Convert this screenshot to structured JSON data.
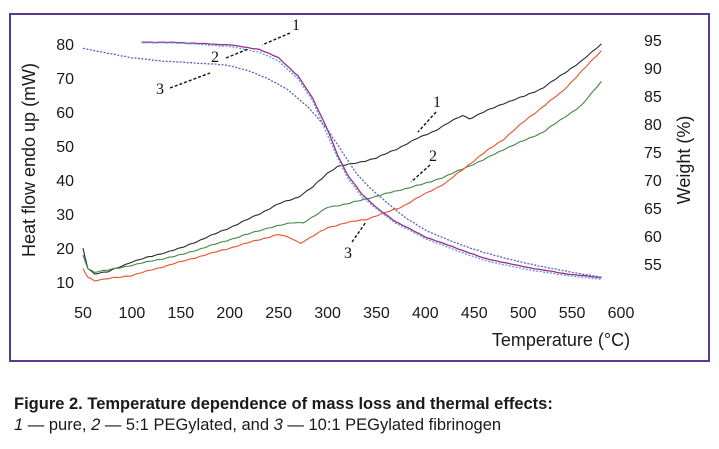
{
  "figure": {
    "caption_title": "Figure 2. Temperature dependence of mass loss and thermal effects:",
    "caption_line2_parts": [
      {
        "text": "1",
        "italic": true
      },
      {
        "text": " — pure, ",
        "italic": false
      },
      {
        "text": "2",
        "italic": true
      },
      {
        "text": " — 5:1 PEGylated, and ",
        "italic": false
      },
      {
        "text": "3",
        "italic": true
      },
      {
        "text": " — 10:1 PEGylated fibrinogen",
        "italic": false
      }
    ]
  },
  "chart_data": {
    "type": "line",
    "xlabel": "Temperature (°C)",
    "ylabel_left": "Heat flow endo up (mW)",
    "ylabel_right": "Weight (%)",
    "xlim": [
      50,
      600
    ],
    "ylim_left": [
      8,
      82
    ],
    "ylim_right": [
      50.5,
      95.5
    ],
    "x_ticks": [
      50,
      100,
      150,
      200,
      250,
      300,
      350,
      400,
      450,
      500,
      550,
      600
    ],
    "y_left_ticks": [
      10,
      20,
      30,
      40,
      50,
      60,
      70,
      80
    ],
    "y_right_ticks": [
      55,
      60,
      65,
      70,
      75,
      80,
      85,
      90,
      95
    ],
    "grid": false,
    "legend": "none",
    "series": [
      {
        "group": "heat_flow",
        "label": "1",
        "axis": "left",
        "color": "#2b2b2b",
        "points": [
          [
            50,
            20
          ],
          [
            55,
            14
          ],
          [
            62,
            12.5
          ],
          [
            75,
            13
          ],
          [
            100,
            16
          ],
          [
            150,
            20
          ],
          [
            200,
            26
          ],
          [
            230,
            30
          ],
          [
            250,
            33
          ],
          [
            270,
            35
          ],
          [
            285,
            38
          ],
          [
            300,
            42
          ],
          [
            310,
            44
          ],
          [
            330,
            45
          ],
          [
            350,
            46.5
          ],
          [
            370,
            49
          ],
          [
            390,
            52
          ],
          [
            410,
            54.5
          ],
          [
            425,
            57
          ],
          [
            438,
            59
          ],
          [
            445,
            58
          ],
          [
            460,
            60
          ],
          [
            480,
            62.5
          ],
          [
            500,
            64.5
          ],
          [
            520,
            67
          ],
          [
            540,
            71
          ],
          [
            560,
            75
          ],
          [
            580,
            80
          ]
        ]
      },
      {
        "group": "heat_flow",
        "label": "2",
        "axis": "left",
        "color": "#3e8a44",
        "points": [
          [
            50,
            18
          ],
          [
            55,
            14
          ],
          [
            62,
            13
          ],
          [
            75,
            13.5
          ],
          [
            100,
            15
          ],
          [
            150,
            18
          ],
          [
            200,
            22.5
          ],
          [
            240,
            26
          ],
          [
            265,
            27.5
          ],
          [
            275,
            27.5
          ],
          [
            290,
            30
          ],
          [
            300,
            32
          ],
          [
            320,
            33
          ],
          [
            340,
            34.5
          ],
          [
            360,
            36
          ],
          [
            380,
            37.5
          ],
          [
            400,
            39
          ],
          [
            420,
            41
          ],
          [
            440,
            43.5
          ],
          [
            460,
            46
          ],
          [
            480,
            49
          ],
          [
            500,
            51.5
          ],
          [
            520,
            54
          ],
          [
            540,
            58
          ],
          [
            560,
            62
          ],
          [
            580,
            69
          ]
        ]
      },
      {
        "group": "heat_flow",
        "label": "3",
        "axis": "left",
        "color": "#e8532c",
        "points": [
          [
            50,
            14
          ],
          [
            55,
            11.5
          ],
          [
            62,
            10.5
          ],
          [
            75,
            11
          ],
          [
            100,
            12
          ],
          [
            150,
            16
          ],
          [
            200,
            20
          ],
          [
            230,
            22.5
          ],
          [
            250,
            24
          ],
          [
            262,
            23
          ],
          [
            272,
            21.5
          ],
          [
            282,
            23
          ],
          [
            300,
            26
          ],
          [
            320,
            27.5
          ],
          [
            340,
            28.5
          ],
          [
            355,
            30
          ],
          [
            375,
            32
          ],
          [
            400,
            36
          ],
          [
            420,
            39
          ],
          [
            440,
            43.5
          ],
          [
            460,
            48
          ],
          [
            480,
            52
          ],
          [
            500,
            57
          ],
          [
            520,
            61.5
          ],
          [
            540,
            66
          ],
          [
            560,
            72
          ],
          [
            580,
            78
          ]
        ]
      },
      {
        "group": "weight",
        "label": "1",
        "axis": "right",
        "color": "#9b2d8a",
        "points": [
          [
            110,
            94.6
          ],
          [
            150,
            94.5
          ],
          [
            200,
            94.1
          ],
          [
            230,
            93.3
          ],
          [
            250,
            91.8
          ],
          [
            270,
            88.5
          ],
          [
            285,
            84.5
          ],
          [
            300,
            79
          ],
          [
            310,
            74.5
          ],
          [
            320,
            71
          ],
          [
            335,
            67.5
          ],
          [
            350,
            65
          ],
          [
            370,
            62.5
          ],
          [
            400,
            59.8
          ],
          [
            430,
            57.9
          ],
          [
            460,
            56
          ],
          [
            500,
            54.5
          ],
          [
            540,
            53.3
          ],
          [
            580,
            52.5
          ]
        ]
      },
      {
        "group": "weight",
        "label": "2",
        "axis": "right",
        "color": "#5ba0d4",
        "points": [
          [
            110,
            94.5
          ],
          [
            150,
            94.4
          ],
          [
            200,
            93.8
          ],
          [
            230,
            92.8
          ],
          [
            250,
            91.2
          ],
          [
            270,
            88
          ],
          [
            285,
            84
          ],
          [
            300,
            78
          ],
          [
            310,
            74
          ],
          [
            320,
            70.5
          ],
          [
            335,
            67
          ],
          [
            350,
            64.8
          ],
          [
            370,
            62.2
          ],
          [
            400,
            59.5
          ],
          [
            430,
            57.5
          ],
          [
            460,
            55.6
          ],
          [
            500,
            54.1
          ],
          [
            540,
            53
          ],
          [
            580,
            52.2
          ]
        ]
      },
      {
        "group": "weight",
        "label": "3",
        "axis": "right",
        "color": "#5a63b5",
        "points": [
          [
            50,
            93.5
          ],
          [
            75,
            92.6
          ],
          [
            100,
            91.8
          ],
          [
            125,
            91.3
          ],
          [
            150,
            91
          ],
          [
            180,
            90.7
          ],
          [
            200,
            90.4
          ],
          [
            220,
            89.4
          ],
          [
            240,
            88
          ],
          [
            260,
            86
          ],
          [
            280,
            83
          ],
          [
            300,
            79
          ],
          [
            315,
            75
          ],
          [
            330,
            71
          ],
          [
            345,
            68.3
          ],
          [
            360,
            66
          ],
          [
            380,
            63.2
          ],
          [
            400,
            61
          ],
          [
            430,
            58.8
          ],
          [
            460,
            57
          ],
          [
            500,
            55.2
          ],
          [
            540,
            53.8
          ],
          [
            580,
            52.6
          ]
        ]
      }
    ],
    "annotations": [
      {
        "label": "1",
        "target_series": "weight 1"
      },
      {
        "label": "2",
        "target_series": "weight 2"
      },
      {
        "label": "3",
        "target_series": "weight 3"
      },
      {
        "label": "1",
        "target_series": "heat_flow 1"
      },
      {
        "label": "2",
        "target_series": "heat_flow 2"
      },
      {
        "label": "3",
        "target_series": "heat_flow 3"
      }
    ]
  }
}
